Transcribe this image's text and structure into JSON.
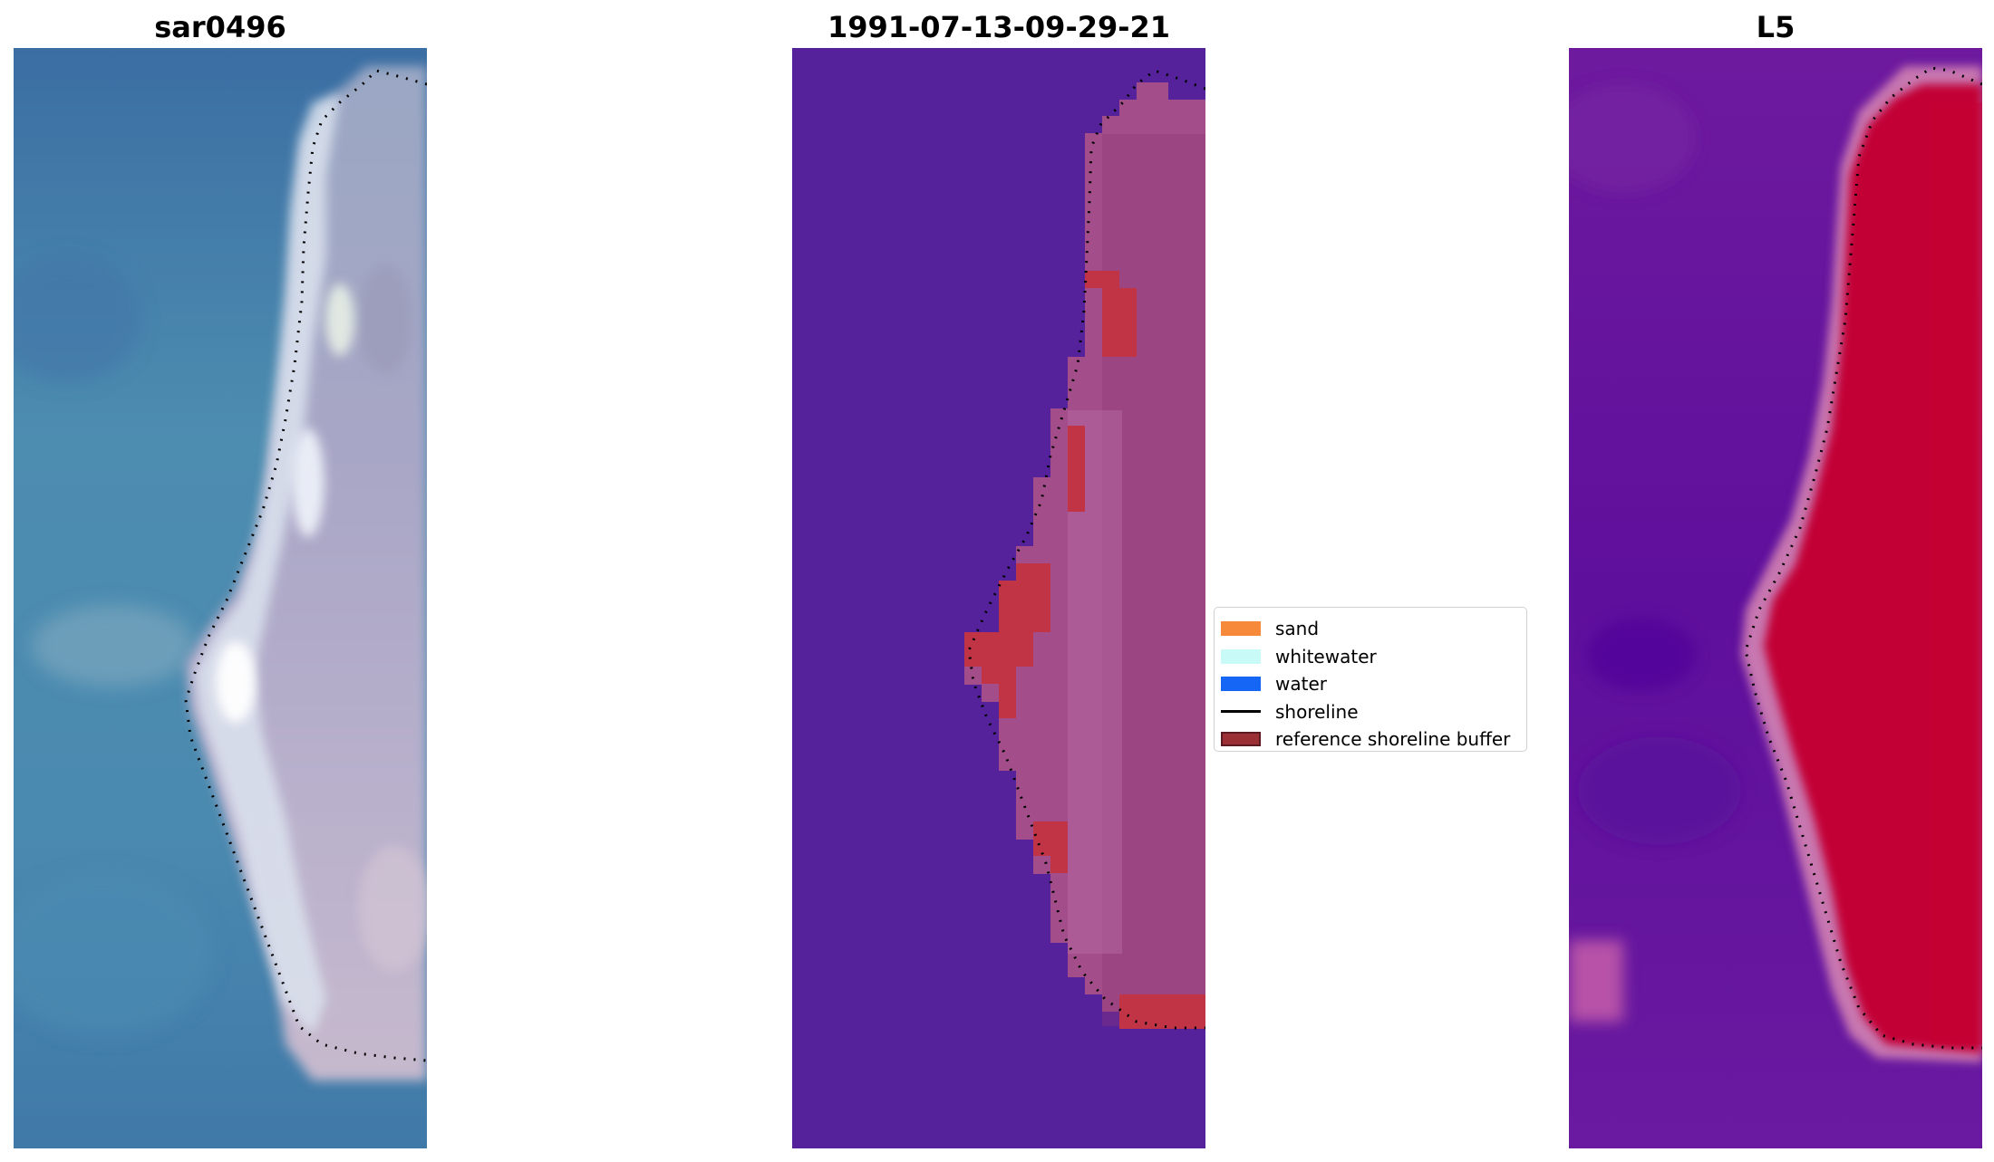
{
  "panels": [
    {
      "title": "sar0496"
    },
    {
      "title": "1991-07-13-09-29-21"
    },
    {
      "title": "L5"
    }
  ],
  "legend": {
    "items": [
      {
        "label": "sand",
        "color": "#f7893a",
        "kind": "patch"
      },
      {
        "label": "whitewater",
        "color": "#c8fbf7",
        "kind": "patch"
      },
      {
        "label": "water",
        "color": "#1566f5",
        "kind": "patch"
      },
      {
        "label": "shoreline",
        "color": "#000000",
        "kind": "line"
      },
      {
        "label": "reference shoreline buffer",
        "color": "#9b2f36",
        "kind": "patch"
      }
    ]
  },
  "colors": {
    "sea_rgb": "#4a86ae",
    "sand_rgb": "#aba4c0",
    "classified_water": "#55229b",
    "classified_land": "#a34e8a",
    "buffer_highlight": "#c03446",
    "index_low": "#5c119b",
    "index_high": "#c20535"
  }
}
